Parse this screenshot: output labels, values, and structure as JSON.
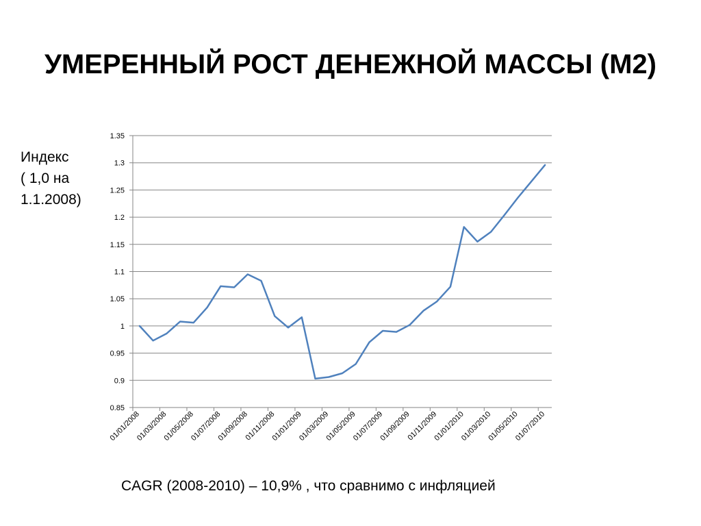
{
  "slide": {
    "title": "УМЕРЕННЫЙ РОСТ ДЕНЕЖНОЙ МАССЫ (М2)",
    "ylabel_lines": [
      "Индекс",
      "( 1,0 на",
      "1.1.2008)"
    ],
    "caption": "CAGR (2008-2010) – 10,9% , что сравнимо с инфляцией"
  },
  "chart_data": {
    "type": "line",
    "title": "",
    "xlabel": "",
    "ylabel": "Индекс ( 1,0 на 1.1.2008)",
    "ylim": [
      0.85,
      1.35
    ],
    "yticks": [
      "0.85",
      "0.9",
      "0.95",
      "1",
      "1.05",
      "1.1",
      "1.15",
      "1.2",
      "1.25",
      "1.3",
      "1.35"
    ],
    "grid": "horizontal",
    "legend": "none",
    "line_color": "#4F81BD",
    "x_tick_labels": [
      "01/01/2008",
      "01/03/2008",
      "01/05/2008",
      "01/07/2008",
      "01/09/2008",
      "01/11/2008",
      "01/01/2009",
      "01/03/2009",
      "01/05/2009",
      "01/07/2009",
      "01/09/2009",
      "01/11/2009",
      "01/01/2010",
      "01/03/2010",
      "01/05/2010",
      "01/07/2010"
    ],
    "x": [
      "01/01/2008",
      "01/02/2008",
      "01/03/2008",
      "01/04/2008",
      "01/05/2008",
      "01/06/2008",
      "01/07/2008",
      "01/08/2008",
      "01/09/2008",
      "01/10/2008",
      "01/11/2008",
      "01/12/2008",
      "01/01/2009",
      "01/02/2009",
      "01/03/2009",
      "01/04/2009",
      "01/05/2009",
      "01/06/2009",
      "01/07/2009",
      "01/08/2009",
      "01/09/2009",
      "01/10/2009",
      "01/11/2009",
      "01/12/2009",
      "01/01/2010",
      "01/02/2010",
      "01/03/2010",
      "01/04/2010",
      "01/05/2010",
      "01/06/2010",
      "01/07/2010"
    ],
    "series": [
      {
        "values": [
          1.0,
          0.973,
          0.986,
          1.008,
          1.006,
          1.034,
          1.073,
          1.071,
          1.095,
          1.083,
          1.018,
          0.997,
          1.016,
          0.903,
          0.906,
          0.913,
          0.93,
          0.97,
          0.991,
          0.989,
          1.002,
          1.028,
          1.045,
          1.072,
          1.182,
          1.155,
          1.173,
          1.204,
          1.236,
          1.266,
          1.296
        ]
      }
    ]
  }
}
